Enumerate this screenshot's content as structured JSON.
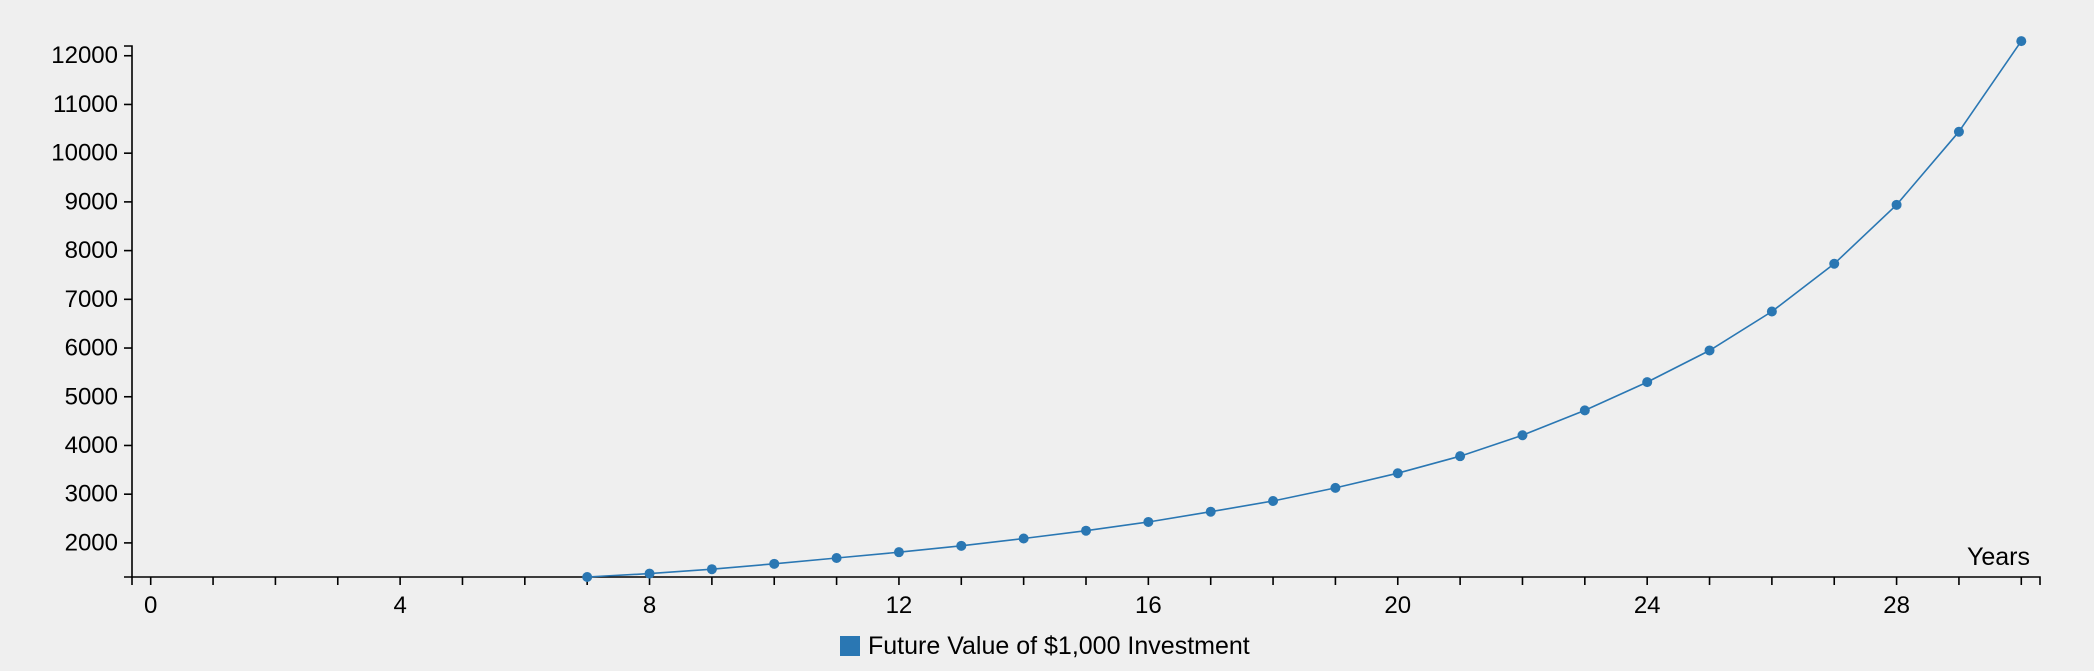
{
  "colors": {
    "background": "#efefef",
    "series": "#2a77b3",
    "axis": "#000000"
  },
  "chart_data": {
    "type": "line",
    "title": "",
    "xlabel": "Years",
    "ylabel": "",
    "xlim": [
      -0.3,
      30.3
    ],
    "ylim": [
      1300,
      12200
    ],
    "grid": false,
    "legend_position": "bottom-center",
    "x_ticks": [
      0,
      4,
      8,
      12,
      16,
      20,
      24,
      28
    ],
    "x_tick_labels": [
      "0",
      "4",
      "8",
      "12",
      "16",
      "20",
      "24",
      "28"
    ],
    "x_minor_ticks": [
      1,
      2,
      3,
      5,
      6,
      7,
      9,
      10,
      11,
      13,
      14,
      15,
      17,
      18,
      19,
      21,
      22,
      23,
      25,
      26,
      27,
      29,
      30
    ],
    "y_ticks": [
      2000,
      3000,
      4000,
      5000,
      6000,
      7000,
      8000,
      9000,
      10000,
      11000,
      12000
    ],
    "y_tick_labels": [
      "2000",
      "3000",
      "4000",
      "5000",
      "6000",
      "7000",
      "8000",
      "9000",
      "10000",
      "11000",
      "12000"
    ],
    "series": [
      {
        "name": "Future Value of $1,000 Investment",
        "x": [
          7,
          8,
          9,
          10,
          11,
          12,
          13,
          14,
          15,
          16,
          17,
          18,
          19,
          20,
          21,
          22,
          23,
          24,
          25,
          26,
          27,
          28,
          29,
          30
        ],
        "values": [
          1300,
          1370,
          1460,
          1570,
          1690,
          1810,
          1940,
          2090,
          2250,
          2430,
          2640,
          2860,
          3130,
          3430,
          3780,
          4210,
          4720,
          5300,
          5950,
          6750,
          7730,
          8940,
          10440,
          12300
        ]
      }
    ]
  }
}
